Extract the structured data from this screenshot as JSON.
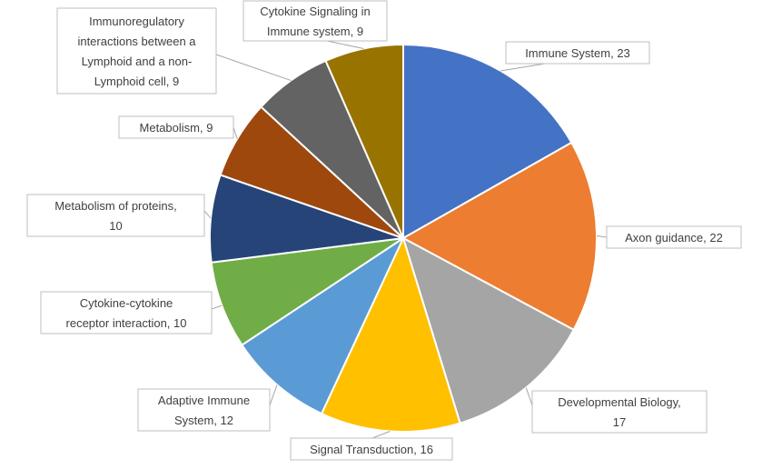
{
  "chart_data": {
    "type": "pie",
    "slices": [
      {
        "label": "Immune System",
        "value": 23,
        "display": "Immune System, 23",
        "color": "#4472C4"
      },
      {
        "label": "Axon guidance",
        "value": 22,
        "display": "Axon guidance, 22",
        "color": "#ED7D31"
      },
      {
        "label": "Developmental Biology",
        "value": 17,
        "display": "Developmental Biology, 17",
        "color": "#A5A5A5"
      },
      {
        "label": "Signal Transduction",
        "value": 16,
        "display": "Signal Transduction, 16",
        "color": "#FFC000"
      },
      {
        "label": "Adaptive Immune System",
        "value": 12,
        "display": "Adaptive Immune System, 12",
        "color": "#5B9BD5"
      },
      {
        "label": "Cytokine-cytokine receptor interaction",
        "value": 10,
        "display": "Cytokine-cytokine receptor interaction, 10",
        "color": "#70AD47"
      },
      {
        "label": "Metabolism of proteins",
        "value": 10,
        "display": "Metabolism of proteins, 10",
        "color": "#264478"
      },
      {
        "label": "Metabolism",
        "value": 9,
        "display": "Metabolism, 9",
        "color": "#9E480E"
      },
      {
        "label": "Immunoregulatory interactions between a Lymphoid and a non-Lymphoid cell",
        "value": 9,
        "display": "Immunoregulatory interactions between a Lymphoid and a non-Lymphoid cell, 9",
        "color": "#636363"
      },
      {
        "label": "Cytokine Signaling in Immune system",
        "value": 9,
        "display": "Cytokine Signaling in Immune system, 9",
        "color": "#997300"
      }
    ]
  }
}
